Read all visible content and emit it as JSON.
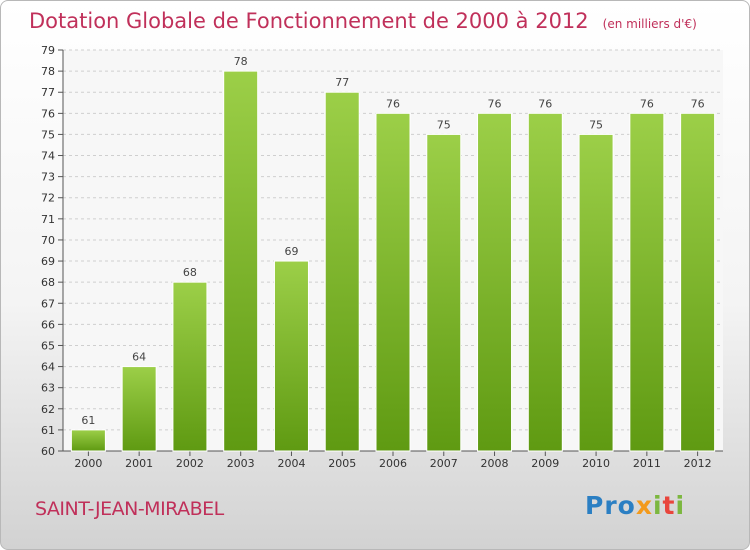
{
  "title": "Dotation Globale de Fonctionnement de 2000 à 2012",
  "subtitle": "(en milliers d'€)",
  "commune": "SAINT-JEAN-MIRABEL",
  "logo": {
    "p1": "Pro",
    "p2": "x",
    "p3": "i",
    "p4": "t",
    "p5": "i"
  },
  "colors": {
    "bar_top": "#9ccf48",
    "bar_bottom": "#5f9a12",
    "title": "#c0305a"
  },
  "chart_data": {
    "type": "bar",
    "title": "Dotation Globale de Fonctionnement de 2000 à 2012",
    "subtitle": "(en milliers d'€)",
    "xlabel": "",
    "ylabel": "",
    "categories": [
      "2000",
      "2001",
      "2002",
      "2003",
      "2004",
      "2005",
      "2006",
      "2007",
      "2008",
      "2009",
      "2010",
      "2011",
      "2012"
    ],
    "values": [
      61,
      64,
      68,
      78,
      69,
      77,
      76,
      75,
      76,
      76,
      75,
      76,
      76
    ],
    "ylim": [
      60,
      79
    ],
    "yticks": [
      60,
      61,
      62,
      63,
      64,
      65,
      66,
      67,
      68,
      69,
      70,
      71,
      72,
      73,
      74,
      75,
      76,
      77,
      78,
      79
    ],
    "grid": true
  }
}
